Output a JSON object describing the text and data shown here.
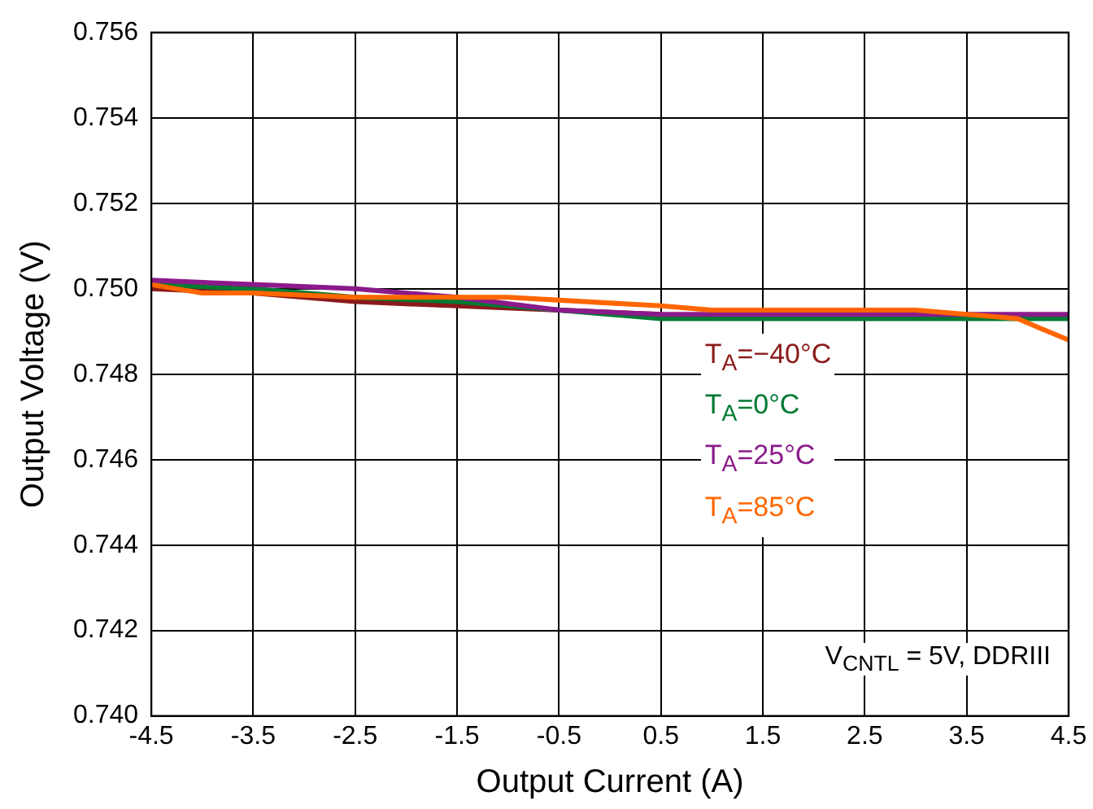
{
  "chart_data": {
    "type": "line",
    "xlabel": "Output Current (A)",
    "ylabel": "Output Voltage (V)",
    "xlim": [
      -4.5,
      4.5
    ],
    "xticks": [
      {
        "value": -4.5,
        "label": "-4.5"
      },
      {
        "value": -3.5,
        "label": "-3.5"
      },
      {
        "value": -2.5,
        "label": "-2.5"
      },
      {
        "value": -1.5,
        "label": "-1.5"
      },
      {
        "value": -0.5,
        "label": "-0.5"
      },
      {
        "value": 0.5,
        "label": "0.5"
      },
      {
        "value": 1.5,
        "label": "1.5"
      },
      {
        "value": 2.5,
        "label": "2.5"
      },
      {
        "value": 3.5,
        "label": "3.5"
      },
      {
        "value": 4.5,
        "label": "4.5"
      }
    ],
    "ylim": [
      0.74,
      0.756
    ],
    "yticks": [
      {
        "value": 0.74,
        "label": "0.740"
      },
      {
        "value": 0.742,
        "label": "0.742"
      },
      {
        "value": 0.744,
        "label": "0.744"
      },
      {
        "value": 0.746,
        "label": "0.746"
      },
      {
        "value": 0.748,
        "label": "0.748"
      },
      {
        "value": 0.75,
        "label": "0.750"
      },
      {
        "value": 0.752,
        "label": "0.752"
      },
      {
        "value": 0.754,
        "label": "0.754"
      },
      {
        "value": 0.756,
        "label": "0.756"
      }
    ],
    "grid": true,
    "legend": "center right",
    "marker": "none",
    "line_style": "solid",
    "series": [
      {
        "name": "T$_{A}$=−40°C",
        "color": "#8b1a1a",
        "x": [
          -4.5,
          -3.5,
          -2.5,
          -1.5,
          -0.5,
          0.5
        ],
        "values": [
          0.75,
          0.7499,
          0.7497,
          0.7496,
          0.7495,
          0.7494
        ]
      },
      {
        "name": "T$_{A}$=0°C",
        "color": "#007a33",
        "x": [
          -4.5,
          -3.5,
          -2.5,
          -1.5,
          -0.5,
          0.5,
          1.5,
          2.5,
          3.5,
          4.5
        ],
        "values": [
          0.7501,
          0.75,
          0.7498,
          0.7497,
          0.7495,
          0.7493,
          0.7493,
          0.7493,
          0.7493,
          0.7493
        ]
      },
      {
        "name": "T$_{A}$=25°C",
        "color": "#8b1a8b",
        "x": [
          -4.5,
          -3.5,
          -2.5,
          -1.5,
          -0.5,
          0.5,
          1.5,
          2.5,
          3.5,
          4.5
        ],
        "values": [
          0.7502,
          0.7501,
          0.75,
          0.7498,
          0.7495,
          0.7494,
          0.7494,
          0.7494,
          0.7494,
          0.7494
        ]
      },
      {
        "name": "T$_{A}$=85°C",
        "color": "#ff6600",
        "x": [
          -4.5,
          -4,
          -3.5,
          -2.5,
          -1,
          0.5,
          1,
          3,
          3.5,
          4,
          4.5
        ],
        "values": [
          0.7501,
          0.7499,
          0.7499,
          0.7498,
          0.7498,
          0.7496,
          0.7495,
          0.7495,
          0.7494,
          0.7493,
          0.7488
        ]
      }
    ],
    "annotations": [
      "V$_{CNTL}$ = 5V, DDRIII"
    ]
  }
}
